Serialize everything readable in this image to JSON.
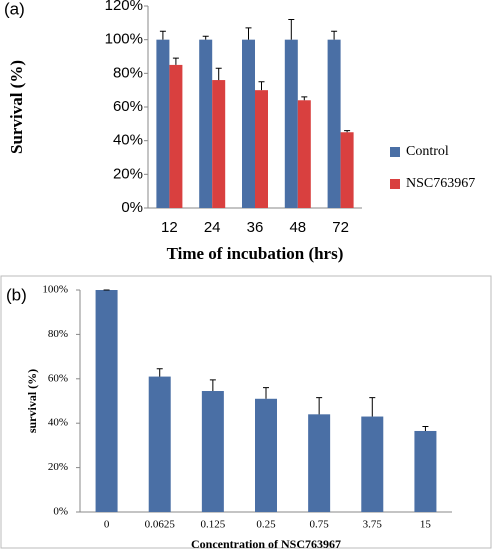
{
  "chart_data": [
    {
      "type": "bar",
      "panel": "(a)",
      "y_label": "Survival (%)",
      "x_label": "Time of incubation (hrs)",
      "categories": [
        "12",
        "24",
        "36",
        "48",
        "72"
      ],
      "series": [
        {
          "name": "Control",
          "color": "#4a6fa5",
          "values": [
            100,
            100,
            100,
            100,
            100
          ],
          "errors": [
            5,
            2,
            7,
            12,
            5
          ]
        },
        {
          "name": "NSC763967",
          "color": "#d9403f",
          "values": [
            85,
            76,
            70,
            64,
            45
          ],
          "errors": [
            4,
            7,
            5,
            2,
            1
          ]
        }
      ],
      "ylim": [
        0,
        120
      ],
      "yticks": [
        {
          "value": 0,
          "label": "0%"
        },
        {
          "value": 20,
          "label": "20%"
        },
        {
          "value": 40,
          "label": "40%"
        },
        {
          "value": 60,
          "label": "60%"
        },
        {
          "value": 80,
          "label": "80%"
        },
        {
          "value": 100,
          "label": "100%"
        },
        {
          "value": 120,
          "label": "120%"
        }
      ],
      "legend": "right"
    },
    {
      "type": "bar",
      "panel": "(b)",
      "y_label": "survival (%)",
      "x_label": "Concentration of NSC763967",
      "categories": [
        "0",
        "0.0625",
        "0.125",
        "0.25",
        "0.75",
        "3.75",
        "15"
      ],
      "values": [
        100,
        61,
        54.5,
        51,
        44,
        43,
        36.5
      ],
      "errors": [
        0,
        3.5,
        5,
        5,
        7.5,
        8.5,
        2
      ],
      "color": "#4a6fa5",
      "ylim": [
        0,
        100
      ],
      "yticks": [
        {
          "value": 0,
          "label": "0%"
        },
        {
          "value": 20,
          "label": "20%"
        },
        {
          "value": 40,
          "label": "40%"
        },
        {
          "value": 60,
          "label": "60%"
        },
        {
          "value": 80,
          "label": "80%"
        },
        {
          "value": 100,
          "label": "100%"
        }
      ]
    }
  ]
}
